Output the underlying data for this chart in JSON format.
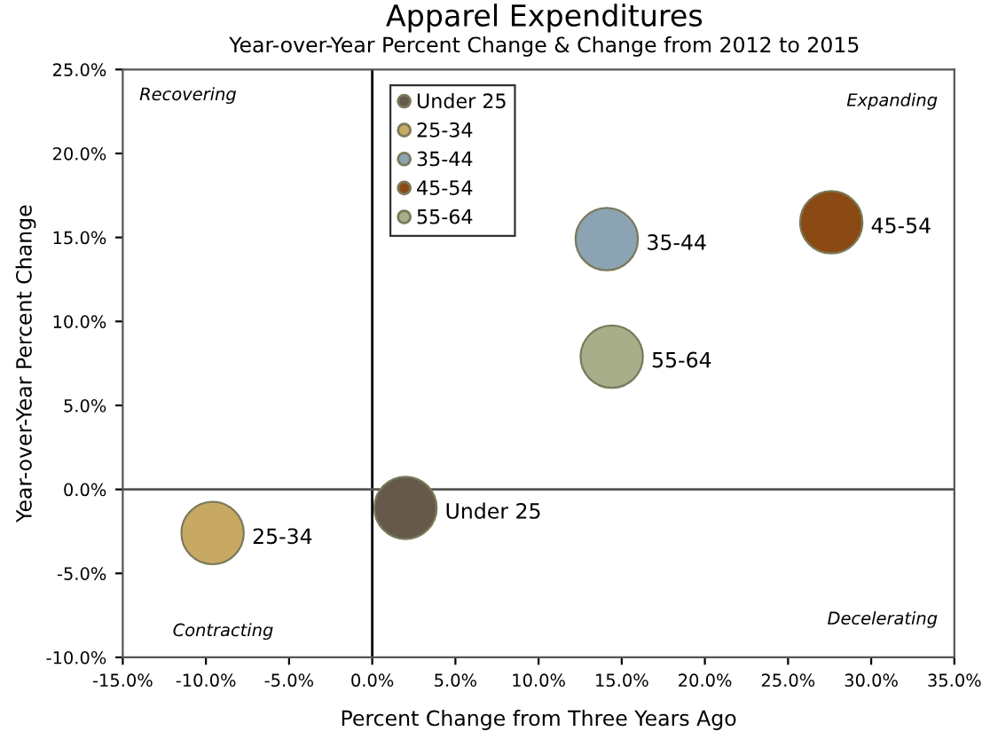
{
  "chart_data": {
    "type": "bubble",
    "title": "Apparel Expenditures",
    "subtitle": "Year-over-Year Percent Change & Change from 2012 to 2015",
    "xlabel": "Percent Change from Three Years Ago",
    "ylabel": "Year-over-Year Percent Change",
    "annotations": [
      "Recovering",
      "Expanding",
      "Contracting",
      "Decelerating"
    ],
    "series": [
      {
        "name": "Under 25",
        "color": "#66594c",
        "x": [
          2.0
        ],
        "values": [
          -1.1
        ],
        "sizes": [
          1
        ]
      },
      {
        "name": "25-34",
        "color": "#c8a964",
        "x": [
          -9.6
        ],
        "values": [
          -2.6
        ],
        "sizes": [
          1
        ]
      },
      {
        "name": "35-44",
        "color": "#8ba3b3",
        "x": [
          14.1
        ],
        "values": [
          14.9
        ],
        "sizes": [
          1
        ]
      },
      {
        "name": "45-54",
        "color": "#8b4a14",
        "x": [
          27.6
        ],
        "values": [
          15.9
        ],
        "sizes": [
          1
        ]
      },
      {
        "name": "55-64",
        "color": "#a9ae8a",
        "x": [
          14.4
        ],
        "values": [
          7.9
        ],
        "sizes": [
          1
        ]
      }
    ],
    "xlim": [
      -15,
      35
    ],
    "xticks": [
      {
        "value": -15,
        "label": "-15.0%"
      },
      {
        "value": -10,
        "label": "-10.0%"
      },
      {
        "value": -5,
        "label": "-5.0%"
      },
      {
        "value": 0,
        "label": "0.0%"
      },
      {
        "value": 5,
        "label": "5.0%"
      },
      {
        "value": 10,
        "label": "10.0%"
      },
      {
        "value": 15,
        "label": "15.0%"
      },
      {
        "value": 20,
        "label": "20.0%"
      },
      {
        "value": 25,
        "label": "25.0%"
      },
      {
        "value": 30,
        "label": "30.0%"
      },
      {
        "value": 35,
        "label": "35.0%"
      }
    ],
    "ylim": [
      -10,
      25
    ],
    "yticks": [
      {
        "value": -10,
        "label": "-10.0%"
      },
      {
        "value": -5,
        "label": "-5.0%"
      },
      {
        "value": 0,
        "label": "0.0%"
      },
      {
        "value": 5,
        "label": "5.0%"
      },
      {
        "value": 10,
        "label": "10.0%"
      },
      {
        "value": 15,
        "label": "15.0%"
      },
      {
        "value": 20,
        "label": "20.0%"
      },
      {
        "value": 25,
        "label": "25.0%"
      }
    ],
    "ref_lines": [
      {
        "axis": "x",
        "value": 0,
        "color": "#000000"
      },
      {
        "axis": "y",
        "value": 0,
        "color": "#555555"
      }
    ],
    "grid": false,
    "legend": "top",
    "marker": "circle"
  }
}
